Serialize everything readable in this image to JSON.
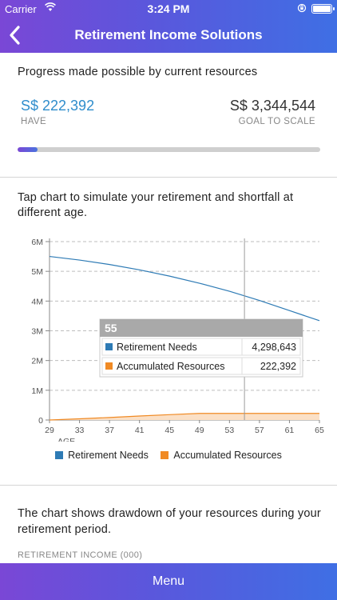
{
  "status_bar": {
    "carrier": "Carrier",
    "time": "3:24 PM"
  },
  "nav": {
    "title": "Retirement Income Solutions"
  },
  "progress_section": {
    "title": "Progress made possible by current resources",
    "have_value": "S$ 222,392",
    "have_label": "HAVE",
    "goal_value": "S$ 3,344,544",
    "goal_label": "GOAL TO SCALE",
    "progress_fraction": 0.0665
  },
  "simulation_section": {
    "title": "Tap chart to simulate your retirement and shortfall at different age."
  },
  "chart_data": {
    "type": "line",
    "xlabel": "AGE",
    "ylabel": "",
    "x_ticks": [
      "29",
      "33",
      "37",
      "41",
      "45",
      "49",
      "53",
      "57",
      "61",
      "65"
    ],
    "y_ticks": [
      "0",
      "1M",
      "2M",
      "3M",
      "4M",
      "5M",
      "6M"
    ],
    "xlim": [
      29,
      65
    ],
    "ylim": [
      0,
      6000000
    ],
    "grid": true,
    "legend_position": "bottom",
    "series": [
      {
        "name": "Retirement Needs",
        "color": "#2e7bb5",
        "x": [
          29,
          33,
          37,
          41,
          45,
          49,
          53,
          57,
          61,
          65
        ],
        "y": [
          5500000,
          5380000,
          5230000,
          5050000,
          4840000,
          4600000,
          4330000,
          4020000,
          3680000,
          3340000
        ]
      },
      {
        "name": "Accumulated Resources",
        "color": "#f08a24",
        "x": [
          29,
          33,
          37,
          41,
          45,
          49,
          53,
          57,
          61,
          65
        ],
        "y": [
          0,
          40000,
          85000,
          135000,
          180000,
          222392,
          222392,
          222392,
          222392,
          222392
        ]
      }
    ],
    "tooltip": {
      "age": "55",
      "rows": [
        {
          "name": "Retirement Needs",
          "value": "4,298,643",
          "color": "#2e7bb5"
        },
        {
          "name": "Accumulated Resources",
          "value": "222,392",
          "color": "#f08a24"
        }
      ]
    },
    "crosshair_x": 55
  },
  "legend": [
    {
      "name": "Retirement Needs",
      "color": "#2e7bb5"
    },
    {
      "name": "Accumulated Resources",
      "color": "#f08a24"
    }
  ],
  "drawdown_section": {
    "title": "The chart shows drawdown of your resources during your retirement period.",
    "subtitle": "RETIREMENT INCOME (000)"
  },
  "menu": {
    "label": "Menu"
  }
}
